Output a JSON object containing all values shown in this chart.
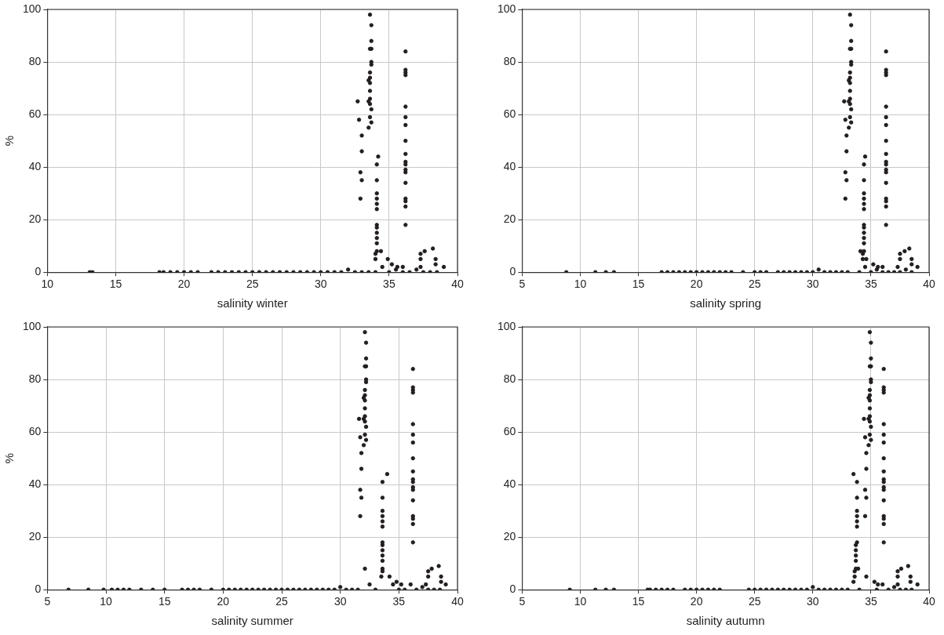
{
  "chart_data": [
    {
      "type": "scatter",
      "xlabel": "salinity winter",
      "ylabel": "%",
      "xlim": [
        10,
        40
      ],
      "xticks": [
        10,
        15,
        20,
        25,
        30,
        35,
        40
      ],
      "ylim": [
        0,
        100
      ],
      "yticks": [
        0,
        20,
        40,
        60,
        80,
        100
      ],
      "grid": true,
      "marker": "circle",
      "series": [
        {
          "color": "#231f20",
          "x": [
            33.6,
            33.7,
            33.7,
            33.7,
            33.6,
            33.7,
            33.7,
            33.6,
            33.6,
            33.5,
            33.6,
            33.6,
            33.6,
            33.5,
            33.6,
            33.7,
            33.6,
            33.7,
            33.5,
            32.7,
            32.8,
            33.0,
            33.0,
            32.9,
            33.0,
            32.9,
            34.2,
            34.1,
            34.1,
            34.1,
            34.1,
            34.1,
            34.1,
            34.1,
            34.1,
            34.1,
            34.1,
            34.1,
            34.1,
            34.0,
            34.0,
            36.2,
            36.2,
            36.2,
            36.2,
            36.2,
            36.2,
            36.2,
            36.2,
            36.2,
            36.2,
            36.2,
            36.2,
            36.2,
            36.2,
            36.2,
            36.2,
            36.2,
            36.2,
            34.4,
            34.9,
            35.2,
            37.3,
            37.3,
            37.6,
            38.2,
            38.4,
            38.4,
            37.3,
            36.0,
            35.6,
            13.1,
            13.3,
            18.2,
            18.5,
            19.0,
            19.5,
            20.0,
            20.5,
            21.0,
            22.0,
            22.5,
            23.0,
            23.5,
            24.0,
            24.5,
            25.0,
            25.5,
            26.0,
            26.5,
            27.0,
            27.5,
            28.0,
            28.5,
            29.0,
            29.5,
            30.0,
            30.5,
            31.0,
            31.5,
            32.0,
            32.5,
            33.0,
            33.5,
            34.0,
            34.5,
            35.0,
            35.5,
            36.0,
            36.5,
            37.0,
            37.5,
            38.0,
            38.5,
            39.0
          ],
          "values": [
            98,
            94,
            88,
            85,
            85,
            80,
            79,
            76,
            74,
            73,
            72,
            69,
            66,
            65,
            64,
            62,
            59,
            57,
            55,
            65,
            58,
            52,
            46,
            38,
            35,
            28,
            44,
            41,
            35,
            30,
            28,
            26,
            24,
            18,
            17,
            15,
            13,
            11,
            8,
            7,
            5,
            84,
            77,
            76,
            75,
            63,
            59,
            56,
            50,
            45,
            42,
            41,
            39,
            38,
            34,
            28,
            27,
            25,
            18,
            8,
            5,
            3,
            7,
            5,
            8,
            9,
            5,
            3,
            2,
            2,
            2,
            0,
            0,
            0,
            0,
            0,
            0,
            0,
            0,
            0,
            0,
            0,
            0,
            0,
            0,
            0,
            0,
            0,
            0,
            0,
            0,
            0,
            0,
            0,
            0,
            0,
            0,
            0,
            0,
            0,
            1,
            0,
            0,
            0,
            0,
            2,
            0,
            1,
            0,
            0,
            1,
            0,
            0,
            0,
            2
          ]
        }
      ]
    },
    {
      "type": "scatter",
      "xlabel": "salinity spring",
      "xlim": [
        5,
        40
      ],
      "xticks": [
        5,
        10,
        15,
        20,
        25,
        30,
        35,
        40
      ],
      "ylim": [
        0,
        100
      ],
      "yticks": [
        0,
        20,
        40,
        60,
        80,
        100
      ],
      "grid": true,
      "marker": "circle",
      "series": [
        {
          "color": "#231f20",
          "x": [
            33.2,
            33.3,
            33.3,
            33.3,
            33.2,
            33.3,
            33.3,
            33.2,
            33.2,
            33.1,
            33.2,
            33.2,
            33.2,
            33.1,
            33.2,
            33.3,
            33.2,
            33.3,
            33.1,
            32.7,
            32.8,
            32.9,
            32.9,
            32.8,
            32.9,
            32.8,
            34.5,
            34.4,
            34.4,
            34.4,
            34.4,
            34.4,
            34.4,
            34.4,
            34.4,
            34.4,
            34.4,
            34.4,
            34.4,
            34.3,
            34.3,
            36.3,
            36.3,
            36.3,
            36.3,
            36.3,
            36.3,
            36.3,
            36.3,
            36.3,
            36.3,
            36.3,
            36.3,
            36.3,
            36.3,
            36.3,
            36.3,
            36.3,
            36.3,
            34.1,
            34.6,
            35.2,
            37.5,
            37.5,
            37.9,
            38.3,
            38.5,
            38.5,
            37.3,
            36.0,
            35.6,
            8.8,
            11.3,
            12.2,
            12.9,
            17.0,
            17.5,
            18.0,
            18.5,
            19.0,
            19.5,
            20.0,
            20.5,
            21.0,
            21.5,
            22.0,
            22.5,
            23.0,
            24.0,
            25.0,
            25.5,
            26.0,
            27.0,
            27.5,
            28.0,
            28.5,
            29.0,
            29.5,
            30.0,
            30.5,
            31.0,
            31.5,
            32.0,
            32.5,
            33.0,
            34.0,
            34.5,
            35.0,
            35.5,
            36.0,
            36.5,
            37.0,
            37.5,
            38.0,
            38.5,
            39.0
          ],
          "values": [
            98,
            94,
            88,
            85,
            85,
            80,
            79,
            76,
            74,
            73,
            72,
            69,
            66,
            65,
            64,
            62,
            59,
            57,
            55,
            65,
            58,
            52,
            46,
            38,
            35,
            28,
            44,
            41,
            35,
            30,
            28,
            26,
            24,
            18,
            17,
            15,
            13,
            11,
            8,
            7,
            5,
            84,
            77,
            76,
            75,
            63,
            59,
            56,
            50,
            45,
            42,
            41,
            39,
            38,
            34,
            28,
            27,
            25,
            18,
            8,
            5,
            3,
            7,
            5,
            8,
            9,
            5,
            3,
            2,
            2,
            2,
            0,
            0,
            0,
            0,
            0,
            0,
            0,
            0,
            0,
            0,
            0,
            0,
            0,
            0,
            0,
            0,
            0,
            0,
            0,
            0,
            0,
            0,
            0,
            0,
            0,
            0,
            0,
            0,
            1,
            0,
            0,
            0,
            0,
            0,
            0,
            2,
            0,
            1,
            0,
            0,
            0,
            0,
            1,
            0,
            2
          ]
        }
      ]
    },
    {
      "type": "scatter",
      "xlabel": "salinity summer",
      "ylabel": "%",
      "xlim": [
        5,
        40
      ],
      "xticks": [
        5,
        10,
        15,
        20,
        25,
        30,
        35,
        40
      ],
      "ylim": [
        0,
        100
      ],
      "yticks": [
        0,
        20,
        40,
        60,
        80,
        100
      ],
      "grid": true,
      "marker": "circle",
      "series": [
        {
          "color": "#231f20",
          "x": [
            32.1,
            32.2,
            32.2,
            32.2,
            32.1,
            32.2,
            32.2,
            32.1,
            32.1,
            32.0,
            32.1,
            32.1,
            32.1,
            32.0,
            32.1,
            32.2,
            32.1,
            32.2,
            32.0,
            31.6,
            31.7,
            31.8,
            31.8,
            31.7,
            31.8,
            31.7,
            34.0,
            33.6,
            33.6,
            33.6,
            33.6,
            33.6,
            33.6,
            33.6,
            33.6,
            33.6,
            33.6,
            33.6,
            33.6,
            33.6,
            33.5,
            36.2,
            36.2,
            36.2,
            36.2,
            36.2,
            36.2,
            36.2,
            36.2,
            36.2,
            36.2,
            36.2,
            36.2,
            36.2,
            36.2,
            36.2,
            36.2,
            36.2,
            36.2,
            32.1,
            34.2,
            34.8,
            37.5,
            37.5,
            37.8,
            38.4,
            38.6,
            38.6,
            37.3,
            36.0,
            35.2,
            6.8,
            8.5,
            9.8,
            10.5,
            11.0,
            11.5,
            12.0,
            13.0,
            14.0,
            15.0,
            16.5,
            17.0,
            17.5,
            18.0,
            19.0,
            20.0,
            20.5,
            21.0,
            21.5,
            22.0,
            22.5,
            23.0,
            23.5,
            24.0,
            24.5,
            25.0,
            25.5,
            26.0,
            26.5,
            27.0,
            27.5,
            28.0,
            28.5,
            29.0,
            29.5,
            30.0,
            30.5,
            31.0,
            31.5,
            32.5,
            33.0,
            34.5,
            35.0,
            35.5,
            36.5,
            37.0,
            37.5,
            38.0,
            38.5,
            39.0
          ],
          "values": [
            98,
            94,
            88,
            85,
            85,
            80,
            79,
            76,
            74,
            73,
            72,
            69,
            66,
            65,
            64,
            62,
            59,
            57,
            55,
            65,
            58,
            52,
            46,
            38,
            35,
            28,
            44,
            41,
            35,
            30,
            28,
            26,
            24,
            18,
            17,
            15,
            13,
            11,
            8,
            7,
            5,
            84,
            77,
            76,
            75,
            63,
            59,
            56,
            50,
            45,
            42,
            41,
            39,
            38,
            34,
            28,
            27,
            25,
            18,
            8,
            5,
            3,
            7,
            5,
            8,
            9,
            5,
            3,
            2,
            2,
            2,
            0,
            0,
            0,
            0,
            0,
            0,
            0,
            0,
            0,
            0,
            0,
            0,
            0,
            0,
            0,
            0,
            0,
            0,
            0,
            0,
            0,
            0,
            0,
            0,
            0,
            0,
            0,
            0,
            0,
            0,
            0,
            0,
            0,
            0,
            0,
            1,
            0,
            0,
            0,
            2,
            0,
            2,
            0,
            0,
            0,
            1,
            0,
            0,
            0,
            2
          ]
        }
      ]
    },
    {
      "type": "scatter",
      "xlabel": "salinity autumn",
      "xlim": [
        5,
        40
      ],
      "xticks": [
        5,
        10,
        15,
        20,
        25,
        30,
        35,
        40
      ],
      "ylim": [
        0,
        100
      ],
      "yticks": [
        0,
        20,
        40,
        60,
        80,
        100
      ],
      "grid": true,
      "marker": "circle",
      "series": [
        {
          "color": "#231f20",
          "x": [
            34.9,
            35.0,
            35.0,
            35.0,
            34.9,
            35.0,
            35.0,
            34.9,
            34.9,
            34.8,
            34.9,
            34.9,
            34.9,
            34.8,
            34.9,
            35.0,
            34.9,
            35.0,
            34.8,
            34.4,
            34.5,
            34.6,
            34.6,
            34.5,
            34.6,
            34.5,
            33.5,
            33.8,
            33.8,
            33.8,
            33.8,
            33.8,
            33.8,
            33.8,
            33.7,
            33.7,
            33.7,
            33.7,
            33.7,
            33.6,
            33.6,
            36.1,
            36.1,
            36.1,
            36.1,
            36.1,
            36.1,
            36.1,
            36.1,
            36.1,
            36.1,
            36.1,
            36.1,
            36.1,
            36.1,
            36.1,
            36.1,
            36.1,
            36.1,
            33.9,
            34.6,
            35.3,
            37.3,
            37.3,
            37.6,
            38.2,
            38.4,
            38.4,
            37.3,
            36.0,
            35.6,
            9.1,
            11.3,
            12.2,
            12.9,
            15.8,
            16.0,
            16.5,
            17.0,
            17.5,
            18.0,
            19.0,
            19.5,
            20.0,
            20.5,
            21.0,
            21.5,
            22.0,
            24.5,
            25.0,
            25.5,
            26.0,
            26.5,
            27.0,
            27.5,
            28.0,
            28.5,
            29.0,
            29.5,
            30.0,
            30.5,
            31.0,
            31.5,
            32.0,
            32.5,
            33.0,
            33.5,
            34.0,
            35.5,
            36.5,
            37.0,
            37.5,
            38.0,
            38.5,
            39.0
          ],
          "values": [
            98,
            94,
            88,
            85,
            85,
            80,
            79,
            76,
            74,
            73,
            72,
            69,
            66,
            65,
            64,
            62,
            59,
            57,
            55,
            65,
            58,
            52,
            46,
            38,
            35,
            28,
            44,
            41,
            35,
            30,
            28,
            26,
            24,
            18,
            17,
            15,
            13,
            11,
            8,
            7,
            5,
            84,
            77,
            76,
            75,
            63,
            59,
            56,
            50,
            45,
            42,
            41,
            39,
            38,
            34,
            28,
            27,
            25,
            18,
            8,
            5,
            3,
            7,
            5,
            8,
            9,
            5,
            3,
            2,
            2,
            2,
            0,
            0,
            0,
            0,
            0,
            0,
            0,
            0,
            0,
            0,
            0,
            0,
            0,
            0,
            0,
            0,
            0,
            0,
            0,
            0,
            0,
            0,
            0,
            0,
            0,
            0,
            0,
            0,
            1,
            0,
            0,
            0,
            0,
            0,
            0,
            3,
            0,
            0,
            0,
            1,
            0,
            0,
            0,
            2
          ]
        }
      ]
    }
  ]
}
